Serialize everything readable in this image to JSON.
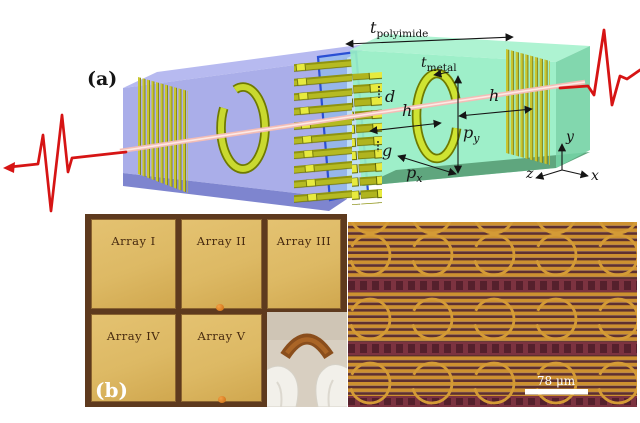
{
  "colors": {
    "pulse_red": "#d61414",
    "beam_pink": "#f3bdb6",
    "beam_core": "#fde9e4",
    "polyimide_purple": "#a5aae8",
    "polyimide_purple_top": "#b7baf0",
    "polyimide_purple_dark": "#7e85cf",
    "polyimide_green": "#97eec5",
    "polyimide_green_top": "#aef3d2",
    "polyimide_green_side": "#74d3a5",
    "polyimide_green_floor": "#5fa67e",
    "metal_gold": "#c9c630",
    "metal_gold_bright": "#e7ea3e",
    "metal_gold_dark": "#6f7a00",
    "ring_yellow": "#cfe332",
    "substrate_blue": "#2a4fd4",
    "annotation_black": "#151515",
    "chip_border_brown": "#5e3a1e",
    "chip_gold": "#ddb964",
    "chip_text": "#46290f",
    "micro_gold": "#cd9130",
    "micro_dark": "#5e3030",
    "micro_band": "#7c3340",
    "micro_ring": "#d49b36",
    "scalebar_white": "#ffffff"
  },
  "panel_a": {
    "label": "(a)",
    "t_polyimide": {
      "base": "t",
      "sub": "polyimide"
    },
    "t_metal": {
      "base": "t",
      "sub": "metal"
    },
    "d": "d",
    "g": "g",
    "h_left": "h",
    "h_right": "h",
    "p_x": {
      "base": "p",
      "sub": "x"
    },
    "p_y": {
      "base": "p",
      "sub": "y"
    },
    "axes": {
      "x": "x",
      "y": "y",
      "z": "z"
    }
  },
  "panel_b": {
    "label": "(b)",
    "arrays": [
      {
        "label": "Array I"
      },
      {
        "label": "Array II"
      },
      {
        "label": "Array III"
      },
      {
        "label": "Array IV"
      },
      {
        "label": "Array V"
      }
    ],
    "scale_bar": {
      "label": "78 μm"
    }
  }
}
